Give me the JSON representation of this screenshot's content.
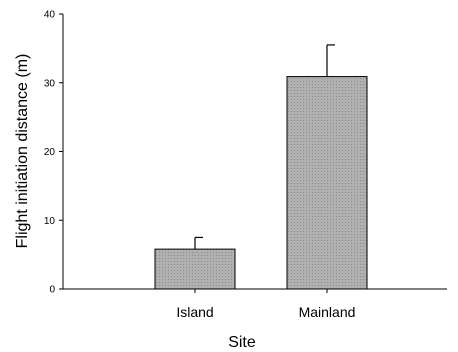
{
  "chart_data": {
    "type": "bar",
    "categories": [
      "Island",
      "Mainland"
    ],
    "values": [
      5.8,
      30.9
    ],
    "error_plus": [
      1.7,
      4.6
    ],
    "xlabel": "Site",
    "ylabel": "Flight initiation distance (m)",
    "ylim": [
      0,
      40
    ],
    "yticks": [
      0,
      10,
      20,
      30,
      40
    ],
    "grid": false,
    "bar_color": "#a8a8a8"
  }
}
